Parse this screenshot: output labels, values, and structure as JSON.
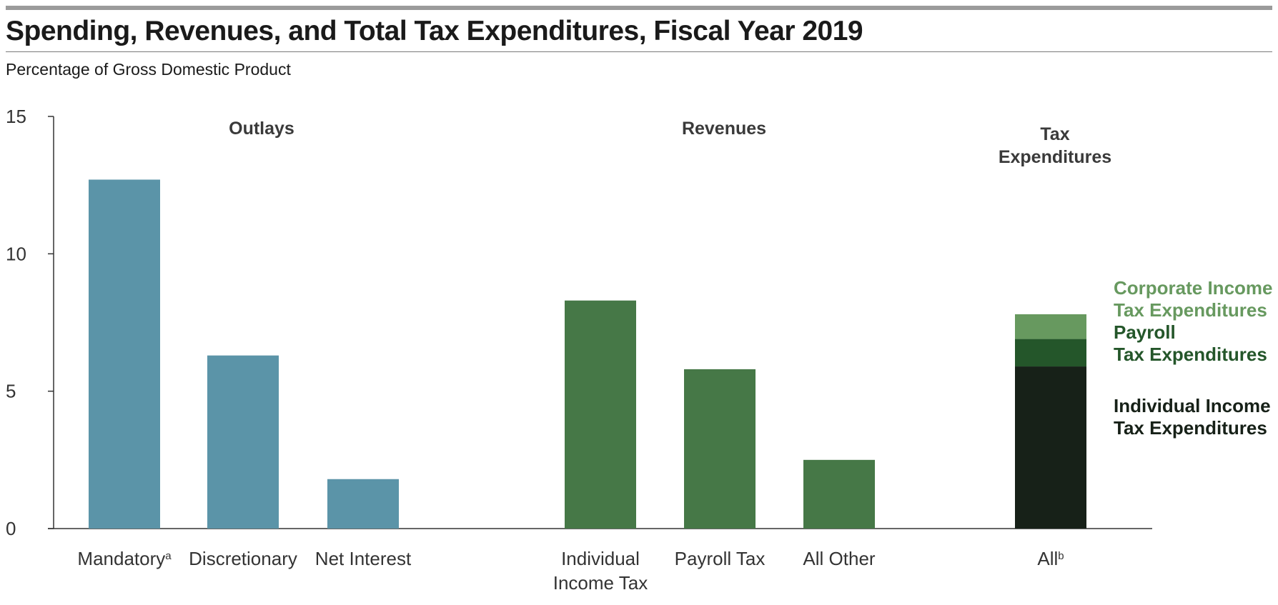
{
  "header": {
    "title": "Spending, Revenues, and Total Tax Expenditures, Fiscal Year 2019",
    "subtitle": "Percentage of Gross Domestic Product"
  },
  "colors": {
    "outlays": "#5b94a8",
    "revenues": "#467847",
    "individual": "#172118",
    "payroll": "#24562a",
    "corporate": "#67995f",
    "axis": "#333333"
  },
  "chart_data": {
    "type": "bar",
    "title": "Spending, Revenues, and Total Tax Expenditures, Fiscal Year 2019",
    "ylabel": "Percentage of Gross Domestic Product",
    "ylim": [
      0,
      15
    ],
    "yticks": [
      0,
      5,
      10,
      15
    ],
    "grid": false,
    "groups": [
      {
        "name": "Outlays",
        "categories": [
          {
            "label": "Mandatory",
            "sup": "a",
            "value": 12.7
          },
          {
            "label": "Discretionary",
            "sup": "",
            "value": 6.3
          },
          {
            "label": "Net Interest",
            "sup": "",
            "value": 1.8
          }
        ]
      },
      {
        "name": "Revenues",
        "categories": [
          {
            "label": "Individual Income Tax",
            "sup": "",
            "value": 8.3
          },
          {
            "label": "Payroll Tax",
            "sup": "",
            "value": 5.8
          },
          {
            "label": "All Other",
            "sup": "",
            "value": 2.5
          }
        ]
      },
      {
        "name": "Tax Expenditures",
        "categories": [
          {
            "label": "All",
            "sup": "b",
            "stack": [
              {
                "name": "Individual Income Tax Expenditures",
                "value": 5.9
              },
              {
                "name": "Payroll Tax Expenditures",
                "value": 1.0
              },
              {
                "name": "Corporate Income Tax Expenditures",
                "value": 0.9
              }
            ]
          }
        ]
      }
    ]
  }
}
